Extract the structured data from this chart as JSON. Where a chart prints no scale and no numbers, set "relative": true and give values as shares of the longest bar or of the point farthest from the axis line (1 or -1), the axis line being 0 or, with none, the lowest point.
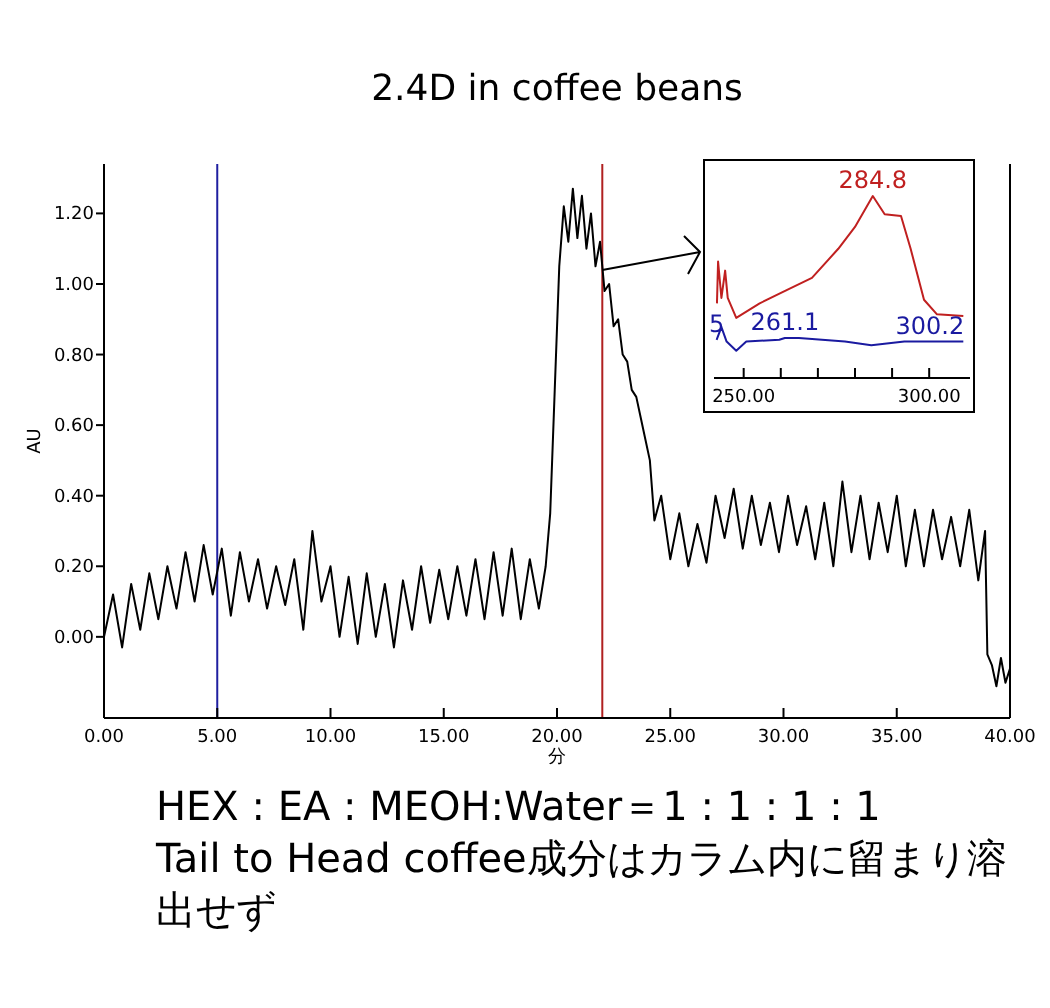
{
  "chart_data": [
    {
      "type": "line",
      "title": "2.4D in  coffee beans",
      "xlabel": "分",
      "ylabel": "AU",
      "xlim": [
        0,
        40
      ],
      "ylim": [
        -0.23,
        1.34
      ],
      "xticks": [
        {
          "value": 0,
          "label": "0.00"
        },
        {
          "value": 5,
          "label": "5.00"
        },
        {
          "value": 10,
          "label": "10.00"
        },
        {
          "value": 15,
          "label": "15.00"
        },
        {
          "value": 20,
          "label": "20.00"
        },
        {
          "value": 25,
          "label": "25.00"
        },
        {
          "value": 30,
          "label": "30.00"
        },
        {
          "value": 35,
          "label": "35.00"
        },
        {
          "value": 40,
          "label": "40.00"
        }
      ],
      "yticks": [
        {
          "value": 0,
          "label": "0.00"
        },
        {
          "value": 0.2,
          "label": "0.20"
        },
        {
          "value": 0.4,
          "label": "0.40"
        },
        {
          "value": 0.6,
          "label": "0.60"
        },
        {
          "value": 0.8,
          "label": "0.80"
        },
        {
          "value": 1.0,
          "label": "1.00"
        },
        {
          "value": 1.2,
          "label": "1.20"
        }
      ],
      "ref_lines": [
        {
          "axis": "x",
          "value": 5.0,
          "color": "#1f1fa0"
        },
        {
          "axis": "x",
          "value": 22.0,
          "color": "#b02020"
        }
      ],
      "series": [
        {
          "color": "#000000",
          "x": [
            0,
            0.4,
            0.8,
            1.2,
            1.6,
            2.0,
            2.4,
            2.8,
            3.2,
            3.6,
            4.0,
            4.4,
            4.8,
            5.2,
            5.6,
            6.0,
            6.4,
            6.8,
            7.2,
            7.6,
            8.0,
            8.4,
            8.8,
            9.2,
            9.6,
            10.0,
            10.4,
            10.8,
            11.2,
            11.6,
            12.0,
            12.4,
            12.8,
            13.2,
            13.6,
            14.0,
            14.4,
            14.8,
            15.2,
            15.6,
            16.0,
            16.4,
            16.8,
            17.2,
            17.6,
            18.0,
            18.4,
            18.8,
            19.2,
            19.5,
            19.7,
            19.9,
            20.1,
            20.3,
            20.5,
            20.7,
            20.9,
            21.1,
            21.3,
            21.5,
            21.7,
            21.9,
            22.1,
            22.3,
            22.5,
            22.7,
            22.9,
            23.1,
            23.3,
            23.5,
            23.7,
            23.9,
            24.1,
            24.3,
            24.6,
            25.0,
            25.4,
            25.8,
            26.2,
            26.6,
            27.0,
            27.4,
            27.8,
            28.2,
            28.6,
            29.0,
            29.4,
            29.8,
            30.2,
            30.6,
            31.0,
            31.4,
            31.8,
            32.2,
            32.6,
            33.0,
            33.4,
            33.8,
            34.2,
            34.6,
            35.0,
            35.4,
            35.8,
            36.2,
            36.6,
            37.0,
            37.4,
            37.8,
            38.2,
            38.6,
            38.9,
            39.0,
            39.2,
            39.4,
            39.6,
            39.8,
            40.0
          ],
          "values": [
            0.0,
            0.12,
            -0.03,
            0.15,
            0.02,
            0.18,
            0.05,
            0.2,
            0.08,
            0.24,
            0.1,
            0.26,
            0.12,
            0.25,
            0.06,
            0.24,
            0.1,
            0.22,
            0.08,
            0.2,
            0.09,
            0.22,
            0.02,
            0.3,
            0.1,
            0.2,
            0.0,
            0.17,
            -0.02,
            0.18,
            0.0,
            0.15,
            -0.03,
            0.16,
            0.02,
            0.2,
            0.04,
            0.19,
            0.05,
            0.2,
            0.06,
            0.22,
            0.05,
            0.24,
            0.06,
            0.25,
            0.05,
            0.22,
            0.08,
            0.2,
            0.35,
            0.7,
            1.05,
            1.22,
            1.12,
            1.27,
            1.13,
            1.25,
            1.1,
            1.2,
            1.05,
            1.12,
            0.98,
            1.0,
            0.88,
            0.9,
            0.8,
            0.78,
            0.7,
            0.68,
            0.62,
            0.56,
            0.5,
            0.33,
            0.4,
            0.22,
            0.35,
            0.2,
            0.32,
            0.21,
            0.4,
            0.28,
            0.42,
            0.25,
            0.4,
            0.26,
            0.38,
            0.24,
            0.4,
            0.26,
            0.37,
            0.22,
            0.38,
            0.2,
            0.44,
            0.24,
            0.4,
            0.22,
            0.38,
            0.24,
            0.4,
            0.2,
            0.36,
            0.2,
            0.36,
            0.22,
            0.34,
            0.2,
            0.36,
            0.16,
            0.3,
            -0.05,
            -0.08,
            -0.14,
            -0.06,
            -0.13,
            -0.09
          ]
        }
      ],
      "annotations": [
        "HEX : EA : MEOH:Water＝1 : 1 : 1 : 1",
        "Tail  to Head   coffee成分はカラム内に留まり溶出せず"
      ]
    },
    {
      "type": "line",
      "relative": true,
      "xlim": [
        242,
        311
      ],
      "xticks": [
        {
          "value": 250,
          "label": "250.00"
        },
        {
          "value": 260,
          "label": null
        },
        {
          "value": 270,
          "label": null
        },
        {
          "value": 280,
          "label": null
        },
        {
          "value": 290,
          "label": null
        },
        {
          "value": 300,
          "label": "300.00"
        }
      ],
      "series": [
        {
          "color": "#c02020",
          "x": [
            242.8,
            243.1,
            244.0,
            245.0,
            245.7,
            248.0,
            254.3,
            261.3,
            268.4,
            275.5,
            280.0,
            284.8,
            288.0,
            292.4,
            295.0,
            298.6,
            302.1,
            309.2
          ],
          "values": [
            0.41,
            0.64,
            0.44,
            0.59,
            0.44,
            0.33,
            0.41,
            0.48,
            0.55,
            0.71,
            0.83,
            1.0,
            0.9,
            0.89,
            0.71,
            0.43,
            0.35,
            0.34
          ]
        },
        {
          "color": "#1a1aa0",
          "x": [
            242.7,
            244.0,
            245.4,
            248.0,
            250.7,
            259.6,
            261.1,
            264.9,
            277.3,
            284.4,
            293.3,
            300.2,
            309.2
          ],
          "values": [
            0.21,
            0.28,
            0.2,
            0.15,
            0.2,
            0.21,
            0.22,
            0.22,
            0.2,
            0.18,
            0.2,
            0.2,
            0.2
          ]
        }
      ],
      "annotations": [
        {
          "text": "284.8",
          "x": 284.8,
          "y": 1.0
        },
        {
          "text": "5",
          "x": 242.7,
          "y": 0.21
        },
        {
          "text": "261.1",
          "x": 261.1,
          "y": 0.22
        },
        {
          "text": "300.2",
          "x": 300.2,
          "y": 0.2
        }
      ]
    }
  ]
}
